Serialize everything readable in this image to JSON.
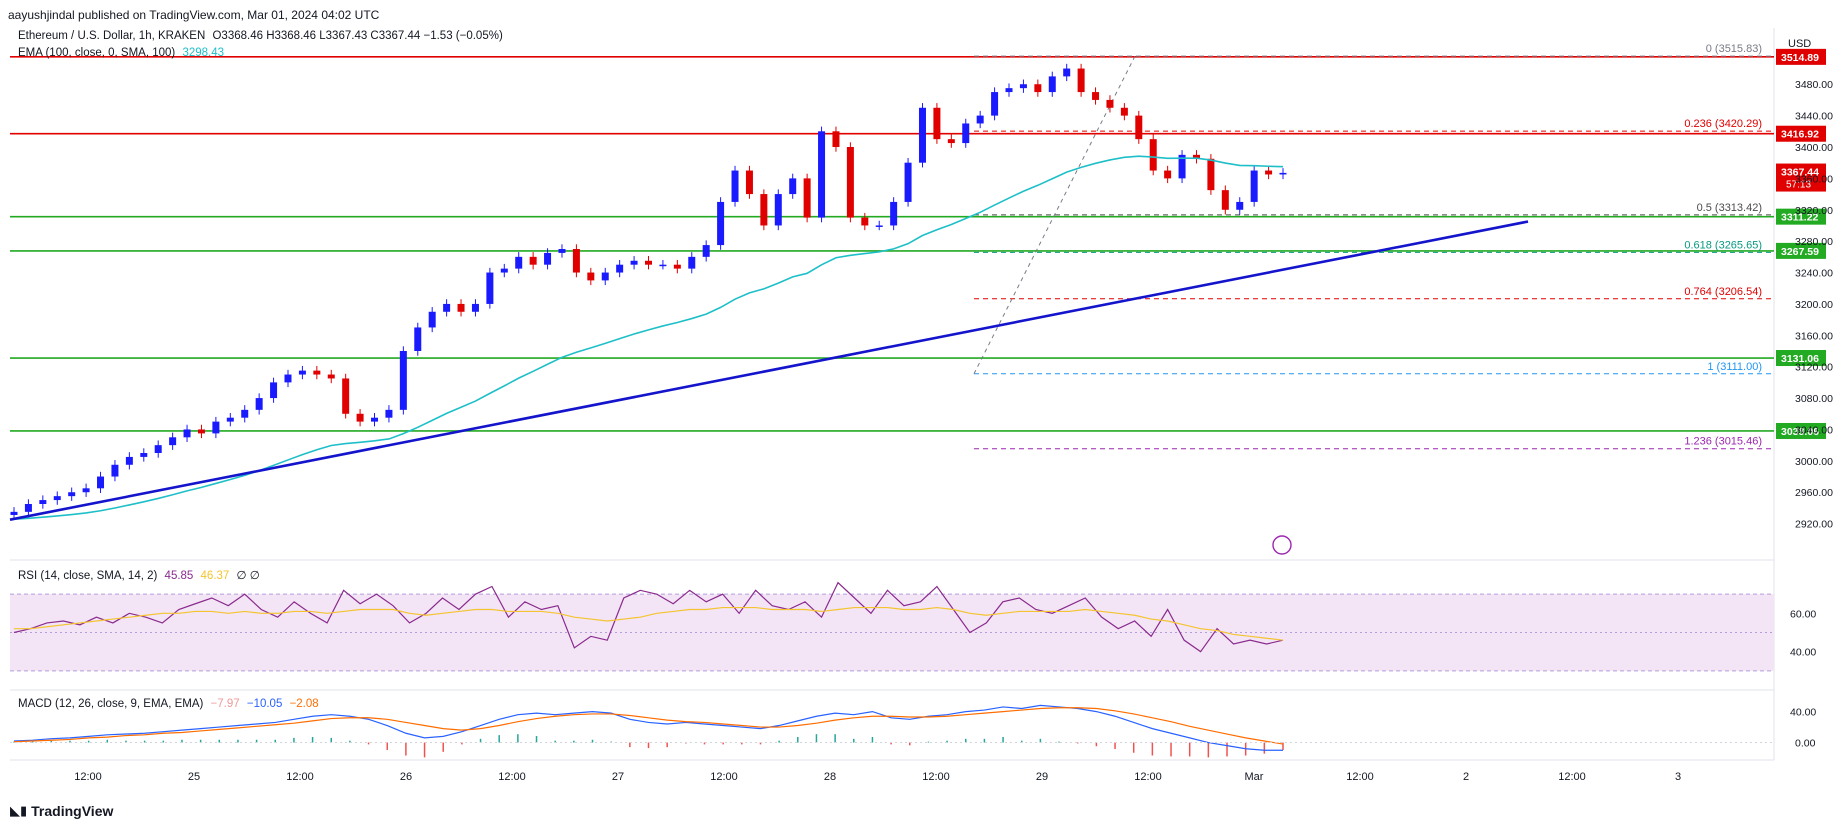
{
  "header": {
    "publisher": "aayushjindal published on TradingView.com, Mar 01, 2024 04:02 UTC",
    "symbol": "Ethereum / U.S. Dollar, 1h, KRAKEN",
    "ohlc": "O3368.46 H3368.46 L3367.43 C3367.44 −1.53 (−0.05%)",
    "ema_label": "EMA (100, close, 0, SMA, 100)",
    "ema_value": "3298.43",
    "currency": "USD"
  },
  "colors": {
    "up": "#1a1aff",
    "down": "#e00000",
    "ema": "#1ebfc8",
    "support": "#22aa22",
    "resistance": "#e00000",
    "trend": "#1414cc",
    "rsi": "#8a2b8e",
    "rsi_ma": "#f4c430",
    "macd": "#2962ff",
    "signal": "#ff6d00"
  },
  "chart_data": {
    "type": "candlestick",
    "title": "Ethereum / U.S. Dollar, 1h, KRAKEN",
    "ylim": [
      2880,
      3530
    ],
    "y_ticks": [
      2920,
      2960,
      3000,
      3040,
      3080,
      3120,
      3160,
      3200,
      3240,
      3280,
      3320,
      3360,
      3400,
      3440,
      3480
    ],
    "x_ticks": [
      "12:00",
      "25",
      "12:00",
      "26",
      "12:00",
      "27",
      "12:00",
      "28",
      "12:00",
      "29",
      "12:00",
      "Mar",
      "12:00",
      "2",
      "12:00",
      "3"
    ],
    "close_path": [
      2935,
      2945,
      2950,
      2955,
      2960,
      2965,
      2980,
      2995,
      3005,
      3010,
      3020,
      3030,
      3040,
      3035,
      3050,
      3055,
      3065,
      3080,
      3100,
      3110,
      3115,
      3110,
      3105,
      3060,
      3050,
      3055,
      3065,
      3140,
      3170,
      3190,
      3200,
      3190,
      3200,
      3240,
      3245,
      3260,
      3250,
      3265,
      3270,
      3240,
      3230,
      3240,
      3250,
      3255,
      3250,
      3250,
      3245,
      3260,
      3275,
      3330,
      3370,
      3340,
      3300,
      3340,
      3360,
      3310,
      3420,
      3400,
      3310,
      3300,
      3300,
      3330,
      3380,
      3450,
      3410,
      3405,
      3430,
      3440,
      3470,
      3475,
      3480,
      3470,
      3490,
      3500,
      3470,
      3460,
      3450,
      3440,
      3410,
      3370,
      3360,
      3390,
      3385,
      3345,
      3320,
      3330,
      3370,
      3365,
      3367
    ],
    "levels": [
      {
        "kind": "resistance",
        "value": 3514.89,
        "label": "3514.89"
      },
      {
        "kind": "resistance",
        "value": 3416.92,
        "label": "3416.92"
      },
      {
        "kind": "support",
        "value": 3311.22,
        "label": "3311.22"
      },
      {
        "kind": "support",
        "value": 3267.59,
        "label": "3267.59"
      },
      {
        "kind": "support",
        "value": 3131.06,
        "label": "3131.06"
      },
      {
        "kind": "support",
        "value": 3038.06,
        "label": "3038.06"
      }
    ],
    "current_price": {
      "value": "3367.44",
      "countdown": "57:13"
    },
    "fib": [
      {
        "ratio": "0",
        "value": 3515.83,
        "label": "0 (3515.83)",
        "color": "#787b86"
      },
      {
        "ratio": "0.236",
        "value": 3420.29,
        "label": "0.236 (3420.29)",
        "color": "#e00000"
      },
      {
        "ratio": "0.5",
        "value": 3313.42,
        "label": "0.5 (3313.42)",
        "color": "#4c4c4c"
      },
      {
        "ratio": "0.618",
        "value": 3265.65,
        "label": "0.618 (3265.65)",
        "color": "#089981"
      },
      {
        "ratio": "0.764",
        "value": 3206.54,
        "label": "0.764 (3206.54)",
        "color": "#e00000"
      },
      {
        "ratio": "1",
        "value": 3111.0,
        "label": "1 (3111.00)",
        "color": "#2196f3"
      },
      {
        "ratio": "1.236",
        "value": 3015.46,
        "label": "1.236 (3015.46)",
        "color": "#9c27b0"
      }
    ],
    "trendline": {
      "from": [
        0,
        2925
      ],
      "to": [
        1.0,
        3305
      ]
    },
    "rsi": {
      "label": "RSI (14, close, SMA, 14, 2)",
      "value": "45.85",
      "ma_value": "46.37",
      "extra": "∅ ∅",
      "ticks": [
        "60.00",
        "40.00"
      ],
      "values": [
        50,
        52,
        55,
        56,
        54,
        58,
        55,
        60,
        58,
        55,
        62,
        65,
        68,
        64,
        70,
        62,
        58,
        66,
        60,
        55,
        72,
        65,
        70,
        64,
        55,
        60,
        68,
        62,
        70,
        74,
        58,
        66,
        62,
        64,
        42,
        48,
        46,
        68,
        72,
        70,
        65,
        72,
        66,
        70,
        60,
        72,
        64,
        62,
        66,
        58,
        76,
        68,
        60,
        72,
        64,
        66,
        74,
        62,
        50,
        55,
        66,
        68,
        62,
        60,
        64,
        68,
        58,
        52,
        56,
        48,
        62,
        46,
        40,
        52,
        44,
        46,
        44,
        46
      ],
      "ma_values": [
        52,
        52,
        53,
        54,
        55,
        56,
        57,
        58,
        59,
        60,
        60,
        61,
        61,
        60,
        61,
        60,
        60,
        61,
        61,
        60,
        61,
        62,
        62,
        62,
        60,
        59,
        60,
        61,
        62,
        62,
        61,
        61,
        61,
        60,
        58,
        57,
        56,
        57,
        58,
        60,
        61,
        62,
        62,
        63,
        63,
        63,
        62,
        62,
        62,
        61,
        62,
        63,
        63,
        63,
        62,
        62,
        63,
        62,
        60,
        59,
        60,
        61,
        61,
        61,
        61,
        62,
        61,
        60,
        59,
        57,
        56,
        54,
        52,
        51,
        49,
        48,
        47,
        46
      ]
    },
    "macd": {
      "label": "MACD (12, 26, close, 9, EMA, EMA)",
      "hist_value": "−7.97",
      "macd_value": "−10.05",
      "signal_value": "−2.08",
      "ticks": [
        "40.00",
        "0.00"
      ],
      "macd_values": [
        2,
        3,
        5,
        6,
        8,
        10,
        11,
        12,
        14,
        16,
        18,
        20,
        22,
        24,
        26,
        30,
        34,
        36,
        34,
        30,
        22,
        12,
        6,
        8,
        14,
        22,
        30,
        36,
        38,
        36,
        38,
        40,
        38,
        30,
        26,
        24,
        26,
        24,
        22,
        20,
        18,
        22,
        28,
        34,
        38,
        36,
        40,
        32,
        30,
        34,
        36,
        40,
        42,
        46,
        44,
        48,
        46,
        44,
        40,
        34,
        26,
        18,
        12,
        6,
        0,
        -4,
        -8,
        -10,
        -10
      ],
      "signal_values": [
        1,
        2,
        3,
        4,
        6,
        7,
        9,
        10,
        12,
        13,
        15,
        17,
        19,
        21,
        23,
        25,
        28,
        31,
        32,
        32,
        30,
        26,
        22,
        18,
        16,
        18,
        22,
        27,
        31,
        34,
        36,
        37,
        37,
        35,
        32,
        29,
        27,
        26,
        24,
        22,
        20,
        20,
        22,
        25,
        29,
        32,
        34,
        34,
        33,
        33,
        34,
        36,
        38,
        40,
        42,
        44,
        45,
        45,
        44,
        41,
        37,
        32,
        27,
        21,
        16,
        11,
        6,
        2,
        -2
      ]
    }
  },
  "watermark": "TradingView"
}
